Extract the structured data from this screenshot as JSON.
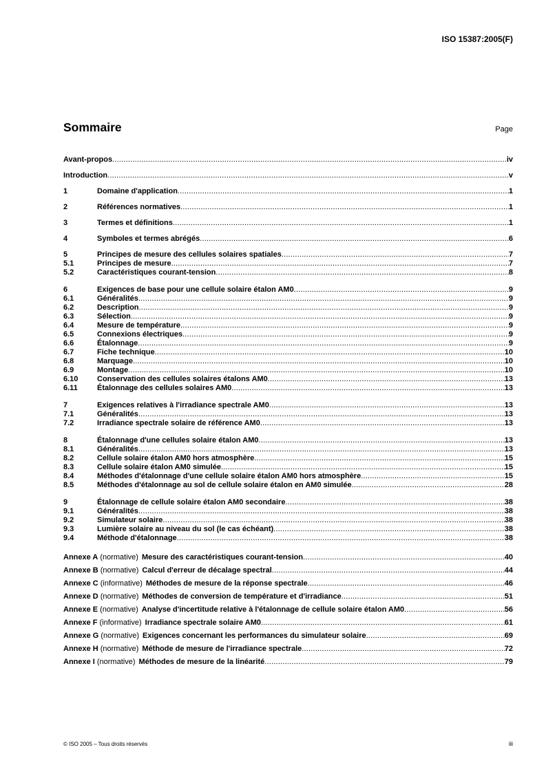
{
  "header": {
    "doc_id": "ISO 15387:2005(F)"
  },
  "toc": {
    "title": "Sommaire",
    "page_label": "Page",
    "groups": [
      [
        {
          "num": "",
          "title": "Avant-propos",
          "page": "iv"
        }
      ],
      [
        {
          "num": "",
          "title": "Introduction",
          "page": "v"
        }
      ],
      [
        {
          "num": "1",
          "title": "Domaine d'application",
          "page": "1"
        }
      ],
      [
        {
          "num": "2",
          "title": "Références normatives",
          "page": "1"
        }
      ],
      [
        {
          "num": "3",
          "title": "Termes et définitions",
          "page": "1"
        }
      ],
      [
        {
          "num": "4",
          "title": "Symboles et termes abrégés",
          "page": "6"
        }
      ],
      [
        {
          "num": "5",
          "title": "Principes de mesure des cellules solaires spatiales",
          "page": "7"
        },
        {
          "num": "5.1",
          "title": "Principes de mesure",
          "page": "7"
        },
        {
          "num": "5.2",
          "title": "Caractéristiques courant-tension",
          "page": "8"
        }
      ],
      [
        {
          "num": "6",
          "title": "Exigences de base pour une cellule solaire étalon AM0",
          "page": "9"
        },
        {
          "num": "6.1",
          "title": "Généralités",
          "page": "9"
        },
        {
          "num": "6.2",
          "title": "Description",
          "page": "9"
        },
        {
          "num": "6.3",
          "title": "Sélection",
          "page": "9"
        },
        {
          "num": "6.4",
          "title": "Mesure de température",
          "page": "9"
        },
        {
          "num": "6.5",
          "title": "Connexions électriques",
          "page": "9"
        },
        {
          "num": "6.6",
          "title": "Étalonnage",
          "page": "9"
        },
        {
          "num": "6.7",
          "title": "Fiche technique",
          "page": "10"
        },
        {
          "num": "6.8",
          "title": "Marquage",
          "page": "10"
        },
        {
          "num": "6.9",
          "title": "Montage",
          "page": "10"
        },
        {
          "num": "6.10",
          "title": "Conservation des cellules solaires étalons AM0",
          "page": "13"
        },
        {
          "num": "6.11",
          "title": "Étalonnage des cellules solaires AM0",
          "page": "13"
        }
      ],
      [
        {
          "num": "7",
          "title": "Exigences relatives à l'irradiance spectrale AM0",
          "page": "13"
        },
        {
          "num": "7.1",
          "title": "Généralités",
          "page": "13"
        },
        {
          "num": "7.2",
          "title": "Irradiance spectrale solaire de référence AM0",
          "page": "13"
        }
      ],
      [
        {
          "num": "8",
          "title": "Étalonnage d'une cellules solaire étalon AM0",
          "page": "13"
        },
        {
          "num": "8.1",
          "title": "Généralités",
          "page": "13"
        },
        {
          "num": "8.2",
          "title": "Cellule solaire étalon AM0 hors atmosphère",
          "page": "15"
        },
        {
          "num": "8.3",
          "title": "Cellule solaire étalon AM0 simulée",
          "page": "15"
        },
        {
          "num": "8.4",
          "title": "Méthodes d'étalonnage d'une cellule solaire étalon AM0 hors atmosphère",
          "page": "15"
        },
        {
          "num": "8.5",
          "title": "Méthodes d'étalonnage au sol de cellule solaire étalon en AM0 simulée",
          "page": "28"
        }
      ],
      [
        {
          "num": "9",
          "title": "Étalonnage de cellule solaire étalon AM0 secondaire",
          "page": "38"
        },
        {
          "num": "9.1",
          "title": "Généralités",
          "page": "38"
        },
        {
          "num": "9.2",
          "title": "Simulateur solaire",
          "page": "38"
        },
        {
          "num": "9.3",
          "title": "Lumière solaire au niveau du sol (le cas échéant)",
          "page": "38"
        },
        {
          "num": "9.4",
          "title": "Méthode d'étalonnage",
          "page": "38"
        }
      ]
    ],
    "annexes": [
      {
        "label": "Annexe A",
        "type": "(normative)",
        "title": "Mesure des caractéristiques courant-tension",
        "page": "40"
      },
      {
        "label": "Annexe B",
        "type": "(normative)",
        "title": "Calcul d'erreur de décalage spectral",
        "page": "44"
      },
      {
        "label": "Annexe C",
        "type": "(informative)",
        "title": "Méthodes de mesure de la réponse spectrale",
        "page": "46"
      },
      {
        "label": "Annexe D",
        "type": "(normative)",
        "title": "Méthodes de conversion de température et d'irradiance",
        "page": "51"
      },
      {
        "label": "Annexe E",
        "type": "(normative)",
        "title": "Analyse d'incertitude relative à l'étalonnage de cellule solaire étalon AM0",
        "page": "56"
      },
      {
        "label": "Annexe F",
        "type": "(informative)",
        "title": "Irradiance spectrale solaire AM0",
        "page": "61"
      },
      {
        "label": "Annexe G",
        "type": "(normative)",
        "title": "Exigences concernant les performances du simulateur solaire",
        "page": "69"
      },
      {
        "label": "Annexe H",
        "type": "(normative)",
        "title": "Méthode de mesure de l'irradiance spectrale",
        "page": "72"
      },
      {
        "label": "Annexe I",
        "type": "(normative)",
        "title": "Méthodes de mesure de la linéarité",
        "page": "79"
      }
    ]
  },
  "footer": {
    "copyright": "© ISO 2005 – Tous droits réservés",
    "page_number": "iii"
  }
}
